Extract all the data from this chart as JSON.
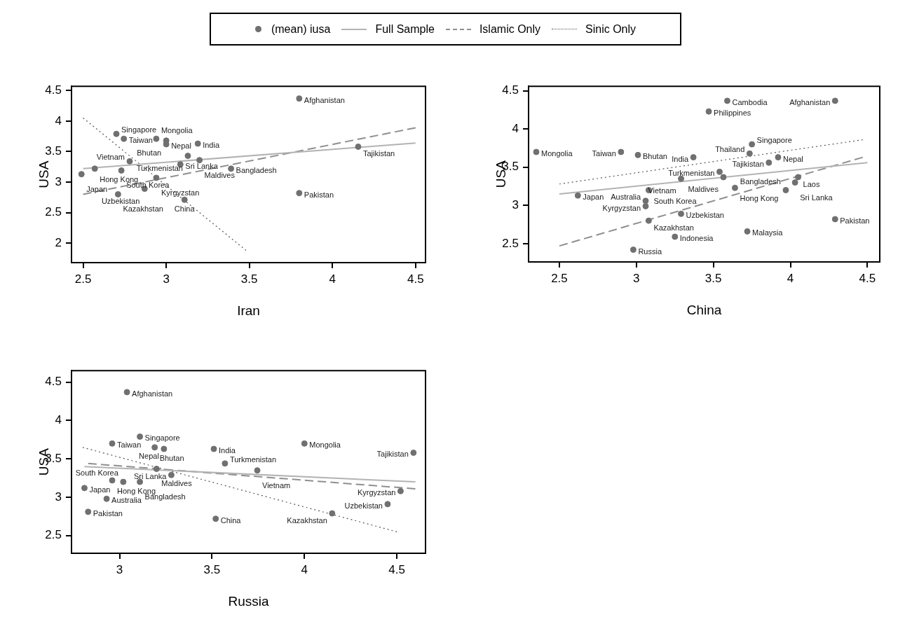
{
  "chart_data": [
    {
      "type": "scatter",
      "xlabel": "Iran",
      "ylabel": "USA",
      "legend": "top",
      "xlim": [
        2.43,
        4.56
      ],
      "ylim": [
        1.68,
        4.57
      ],
      "xticks": [
        2.5,
        3,
        3.5,
        4,
        4.5
      ],
      "yticks": [
        2,
        2.5,
        3,
        3.5,
        4,
        4.5
      ],
      "series": [
        {
          "type": "scatter",
          "name": "(mean) iusa",
          "marker": "circle",
          "color": "#707070",
          "x": [
            3.8,
            2.7,
            2.745,
            2.94,
            3.0,
            3.0,
            3.19,
            4.155,
            3.13,
            3.2,
            2.78,
            3.085,
            3.39,
            2.57,
            2.73,
            2.49,
            2.94,
            2.87,
            2.71,
            3.11,
            3.8
          ],
          "values": [
            4.37,
            3.79,
            3.71,
            3.71,
            3.68,
            3.62,
            3.63,
            3.58,
            3.43,
            3.36,
            3.34,
            3.29,
            3.22,
            3.22,
            3.19,
            3.13,
            3.07,
            2.89,
            2.8,
            2.71,
            2.82
          ],
          "value_labels": [
            "Afghanistan",
            "Singapore",
            "Taiwan",
            "Mongolia",
            "Bhutan",
            "Nepal",
            "India",
            "Tajikistan",
            "Turkmenistan",
            "Maldives",
            "Vietnam",
            "Sri Lanka",
            "Bangladesh",
            "Hong Kong",
            "South Korea",
            "Japan",
            "Kyrgyzstan",
            "Uzbekistan",
            "Kazakhstan",
            "China",
            "Pakistan"
          ]
        },
        {
          "type": "line",
          "name": "Full Sample",
          "color": "#b3b3b3",
          "line_style": "solid",
          "x": [
            2.5,
            4.5
          ],
          "values": [
            3.22,
            3.64
          ]
        },
        {
          "type": "line",
          "name": "Islamic Only",
          "color": "#8f8f8f",
          "line_style": "dashed",
          "x": [
            2.5,
            4.5
          ],
          "values": [
            2.8,
            3.89
          ]
        },
        {
          "type": "line",
          "name": "Sinic Only",
          "color": "#555555",
          "line_style": "dotted",
          "x": [
            2.5,
            3.48
          ],
          "values": [
            4.05,
            1.88
          ]
        }
      ]
    },
    {
      "type": "scatter",
      "xlabel": "China",
      "ylabel": "USA",
      "xlim": [
        2.3,
        4.58
      ],
      "ylim": [
        2.26,
        4.56
      ],
      "xticks": [
        2.5,
        3,
        3.5,
        4,
        4.5
      ],
      "yticks": [
        2.5,
        3,
        3.5,
        4,
        4.5
      ],
      "series": [
        {
          "type": "scatter",
          "marker": "circle",
          "color": "#707070",
          "x": [
            3.59,
            4.29,
            3.47,
            2.35,
            2.9,
            3.01,
            3.37,
            3.75,
            3.735,
            3.92,
            3.86,
            3.54,
            3.565,
            3.29,
            4.05,
            4.03,
            3.64,
            3.97,
            3.08,
            2.62,
            3.06,
            3.06,
            3.29,
            3.08,
            4.29,
            3.72,
            3.25,
            2.98
          ],
          "values": [
            4.37,
            4.37,
            4.23,
            3.7,
            3.7,
            3.66,
            3.63,
            3.8,
            3.68,
            3.63,
            3.56,
            3.44,
            3.37,
            3.35,
            3.37,
            3.3,
            3.23,
            3.2,
            3.2,
            3.13,
            3.06,
            2.99,
            2.89,
            2.8,
            2.82,
            2.66,
            2.59,
            2.42
          ],
          "value_labels": [
            "Cambodia",
            "Afghanistan",
            "Philippines",
            "Mongolia",
            "Taiwan",
            "Bhutan",
            "India",
            "Singapore",
            "Thailand",
            "Nepal",
            "Tajikistan",
            "Turkmenistan",
            "Maldives",
            "Vietnam",
            "Laos",
            "Sri Lanka",
            "Hong Kong",
            "Bangladesh",
            "South Korea",
            "Japan",
            "Kyrgyzstan",
            "Australia",
            "Uzbekistan",
            "Kazakhstan",
            "Pakistan",
            "Malaysia",
            "Indonesia",
            "Russia"
          ]
        },
        {
          "type": "line",
          "color": "#b3b3b3",
          "line_style": "solid",
          "x": [
            2.5,
            4.5
          ],
          "values": [
            3.15,
            3.56
          ]
        },
        {
          "type": "line",
          "color": "#8f8f8f",
          "line_style": "dashed",
          "x": [
            2.5,
            4.47
          ],
          "values": [
            2.47,
            3.63
          ]
        },
        {
          "type": "line",
          "color": "#555555",
          "line_style": "dotted",
          "x": [
            2.5,
            4.47
          ],
          "values": [
            3.28,
            3.86
          ]
        }
      ]
    },
    {
      "type": "scatter",
      "xlabel": "Russia",
      "ylabel": "USA",
      "xlim": [
        2.74,
        4.655
      ],
      "ylim": [
        2.27,
        4.65
      ],
      "xticks": [
        3,
        3.5,
        4,
        4.5
      ],
      "yticks": [
        2.5,
        3,
        3.5,
        4,
        4.5
      ],
      "series": [
        {
          "type": "scatter",
          "marker": "circle",
          "color": "#707070",
          "x": [
            3.04,
            3.11,
            2.96,
            3.19,
            3.24,
            3.51,
            4.0,
            4.59,
            3.57,
            3.2,
            3.745,
            3.28,
            2.96,
            3.02,
            3.11,
            2.81,
            2.93,
            2.83,
            3.52,
            4.15,
            4.45,
            4.52
          ],
          "values": [
            4.37,
            3.79,
            3.7,
            3.65,
            3.63,
            3.63,
            3.7,
            3.58,
            3.44,
            3.37,
            3.35,
            3.29,
            3.22,
            3.2,
            3.2,
            3.12,
            2.98,
            2.81,
            2.72,
            2.79,
            2.91,
            3.08
          ],
          "value_labels": [
            "Afghanistan",
            "Singapore",
            "Taiwan",
            "Bhutan",
            "Nepal",
            "India",
            "Mongolia",
            "Tajikistan",
            "Turkmenistan",
            "Maldives",
            "Vietnam",
            "Sri Lanka",
            "Hong Kong",
            "South Korea",
            "Bangladesh",
            "Japan",
            "Australia",
            "Pakistan",
            "China",
            "Kazakhstan",
            "Uzbekistan",
            "Kyrgyzstan"
          ]
        },
        {
          "type": "line",
          "color": "#b3b3b3",
          "line_style": "solid",
          "x": [
            2.81,
            4.6
          ],
          "values": [
            3.4,
            3.2
          ]
        },
        {
          "type": "line",
          "color": "#8f8f8f",
          "line_style": "dashed",
          "x": [
            2.83,
            4.6
          ],
          "values": [
            3.44,
            3.11
          ]
        },
        {
          "type": "line",
          "color": "#555555",
          "line_style": "dotted",
          "x": [
            2.8,
            4.5
          ],
          "values": [
            3.65,
            2.55
          ]
        }
      ]
    }
  ]
}
